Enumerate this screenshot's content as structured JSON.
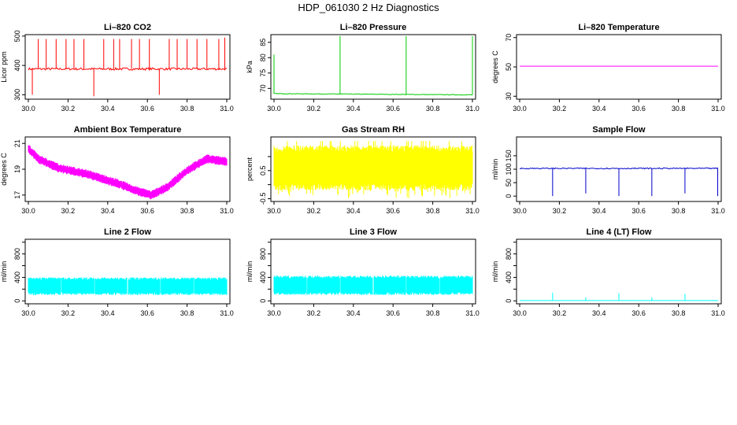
{
  "figure": {
    "title": "HDP_061030  2 Hz Diagnostics"
  },
  "chart_data": [
    {
      "type": "line",
      "title": "Li–820 CO2",
      "ylabel": "Licor ppm",
      "color": "#ff0000",
      "xlim": [
        30.0,
        31.0
      ],
      "ylim": [
        285,
        505
      ],
      "yticks": [
        300,
        400,
        500
      ],
      "xticks": [
        "30.0",
        "30.2",
        "30.4",
        "30.6",
        "30.8",
        "31.0"
      ],
      "series": [
        {
          "baseline": 388,
          "noise": 4,
          "spikes": [
            {
              "x": 30.02,
              "y": 300
            },
            {
              "x": 30.05,
              "y": 490
            },
            {
              "x": 30.09,
              "y": 490
            },
            {
              "x": 30.14,
              "y": 490
            },
            {
              "x": 30.19,
              "y": 490
            },
            {
              "x": 30.23,
              "y": 490
            },
            {
              "x": 30.28,
              "y": 490
            },
            {
              "x": 30.33,
              "y": 295
            },
            {
              "x": 30.38,
              "y": 490
            },
            {
              "x": 30.43,
              "y": 490
            },
            {
              "x": 30.46,
              "y": 490
            },
            {
              "x": 30.52,
              "y": 490
            },
            {
              "x": 30.56,
              "y": 490
            },
            {
              "x": 30.61,
              "y": 490
            },
            {
              "x": 30.66,
              "y": 300
            },
            {
              "x": 30.71,
              "y": 490
            },
            {
              "x": 30.75,
              "y": 490
            },
            {
              "x": 30.8,
              "y": 490
            },
            {
              "x": 30.85,
              "y": 490
            },
            {
              "x": 30.9,
              "y": 490
            },
            {
              "x": 30.96,
              "y": 490
            },
            {
              "x": 30.99,
              "y": 495
            }
          ]
        }
      ]
    },
    {
      "type": "line",
      "title": "Li–820 Pressure",
      "ylabel": "kPa",
      "color": "#00cc00",
      "xlim": [
        30.0,
        31.0
      ],
      "ylim": [
        66.5,
        87.5
      ],
      "yticks": [
        70,
        75,
        80,
        85
      ],
      "xticks": [
        "30.0",
        "30.2",
        "30.4",
        "30.6",
        "30.8",
        "31.0"
      ],
      "series": [
        {
          "baseline_start": 68.3,
          "baseline_end": 67.9,
          "noise": 0.1,
          "spikes": [
            {
              "x": 30.0,
              "y": 81
            },
            {
              "x": 30.333,
              "y": 87
            },
            {
              "x": 30.666,
              "y": 87
            },
            {
              "x": 31.0,
              "y": 87
            }
          ]
        }
      ]
    },
    {
      "type": "line",
      "title": "Li–820 Temperature",
      "ylabel": "degrees C",
      "color": "#ff00ff",
      "xlim": [
        30.0,
        31.0
      ],
      "ylim": [
        28,
        72
      ],
      "yticks": [
        30,
        50,
        70
      ],
      "xticks": [
        "30.0",
        "30.2",
        "30.4",
        "30.6",
        "30.8",
        "31.0"
      ],
      "series": [
        {
          "baseline": 50.5,
          "noise": 0
        }
      ]
    },
    {
      "type": "line",
      "title": "Ambient Box Temperature",
      "ylabel": "degrees C",
      "color": "#ff00ff",
      "xlim": [
        30.0,
        31.0
      ],
      "ylim": [
        16.5,
        21.5
      ],
      "yticks": [
        17,
        19,
        21
      ],
      "xticks": [
        "30.0",
        "30.2",
        "30.4",
        "30.6",
        "30.8",
        "31.0"
      ],
      "series": [
        {
          "trend": [
            {
              "x": 30.0,
              "y": 20.6
            },
            {
              "x": 30.05,
              "y": 19.8
            },
            {
              "x": 30.15,
              "y": 19.1
            },
            {
              "x": 30.3,
              "y": 18.6
            },
            {
              "x": 30.45,
              "y": 17.9
            },
            {
              "x": 30.55,
              "y": 17.3
            },
            {
              "x": 30.62,
              "y": 17.0
            },
            {
              "x": 30.7,
              "y": 17.6
            },
            {
              "x": 30.8,
              "y": 18.9
            },
            {
              "x": 30.9,
              "y": 19.8
            },
            {
              "x": 31.0,
              "y": 19.6
            }
          ],
          "noise": 0.35
        }
      ]
    },
    {
      "type": "line",
      "title": "Gas Stream RH",
      "ylabel": "percent",
      "color": "#ffff00",
      "xlim": [
        30.0,
        31.0
      ],
      "ylim": [
        -0.6,
        1.7
      ],
      "yticks": [
        -0.5,
        0.5
      ],
      "yticks_minor": [
        0.0,
        1.0
      ],
      "xticks": [
        "30.0",
        "30.2",
        "30.4",
        "30.6",
        "30.8",
        "31.0"
      ],
      "series": [
        {
          "band_low": -0.2,
          "band_high": 1.4,
          "noise_mode": "band",
          "dips_to": -0.5
        }
      ]
    },
    {
      "type": "line",
      "title": "Sample Flow",
      "ylabel": "ml/min",
      "color": "#0000cc",
      "xlim": [
        30.0,
        31.0
      ],
      "ylim": [
        -20,
        220
      ],
      "yticks": [
        0,
        50,
        100,
        150
      ],
      "xticks": [
        "30.0",
        "30.2",
        "30.4",
        "30.6",
        "30.8",
        "31.0"
      ],
      "series": [
        {
          "baseline": 103,
          "noise": 2,
          "spikes": [
            {
              "x": 30.166,
              "y": 0
            },
            {
              "x": 30.333,
              "y": 10
            },
            {
              "x": 30.5,
              "y": 0
            },
            {
              "x": 30.666,
              "y": 0
            },
            {
              "x": 30.833,
              "y": 10
            },
            {
              "x": 30.998,
              "y": 0
            }
          ]
        }
      ]
    },
    {
      "type": "line",
      "title": "Line 2 Flow",
      "ylabel": "ml/min",
      "color": "#00ffff",
      "xlim": [
        30.0,
        31.0
      ],
      "ylim": [
        -50,
        1050
      ],
      "yticks": [
        0,
        400,
        800
      ],
      "yticks_minor": [
        200,
        600,
        1000
      ],
      "xticks": [
        "30.0",
        "30.2",
        "30.4",
        "30.6",
        "30.8",
        "31.0"
      ],
      "series": [
        {
          "band_low": 100,
          "band_high": 400,
          "gaps": [
            30.166,
            30.333,
            30.5,
            30.666,
            30.833
          ]
        }
      ]
    },
    {
      "type": "line",
      "title": "Line 3 Flow",
      "ylabel": "ml/min",
      "color": "#00ffff",
      "xlim": [
        30.0,
        31.0
      ],
      "ylim": [
        -50,
        1050
      ],
      "yticks": [
        0,
        400,
        800
      ],
      "yticks_minor": [
        200,
        600,
        1000
      ],
      "xticks": [
        "30.0",
        "30.2",
        "30.4",
        "30.6",
        "30.8",
        "31.0"
      ],
      "series": [
        {
          "band_low": 100,
          "band_high": 430,
          "gaps": [
            30.166,
            30.333,
            30.5,
            30.666,
            30.833
          ]
        }
      ]
    },
    {
      "type": "line",
      "title": "Line 4 (LT) Flow",
      "ylabel": "ml/min",
      "color": "#00ffff",
      "xlim": [
        30.0,
        31.0
      ],
      "ylim": [
        -50,
        1050
      ],
      "yticks": [
        0,
        400,
        800
      ],
      "yticks_minor": [
        200,
        600,
        1000
      ],
      "xticks": [
        "30.0",
        "30.2",
        "30.4",
        "30.6",
        "30.8",
        "31.0"
      ],
      "series": [
        {
          "baseline": 5,
          "noise": 0,
          "spikes": [
            {
              "x": 30.166,
              "y": 140
            },
            {
              "x": 30.333,
              "y": 60
            },
            {
              "x": 30.5,
              "y": 130
            },
            {
              "x": 30.666,
              "y": 60
            },
            {
              "x": 30.833,
              "y": 120
            }
          ]
        }
      ]
    }
  ]
}
